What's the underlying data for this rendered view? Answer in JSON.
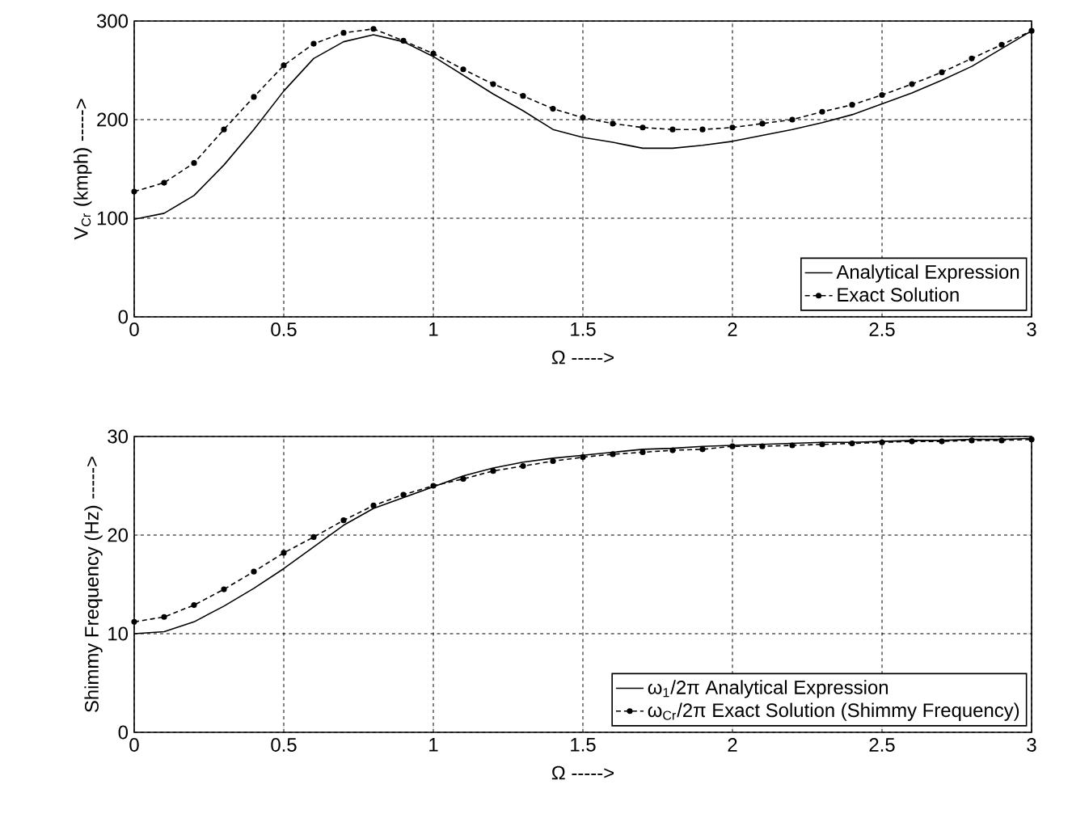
{
  "chart_data": [
    {
      "type": "line",
      "xlabel": "Ω ----->",
      "ylabel": "V$_{Cr}$  (kmph) ----->",
      "x": [
        0,
        0.1,
        0.2,
        0.3,
        0.4,
        0.5,
        0.6,
        0.7,
        0.8,
        0.9,
        1.0,
        1.1,
        1.2,
        1.3,
        1.4,
        1.5,
        1.6,
        1.7,
        1.8,
        1.9,
        2.0,
        2.1,
        2.2,
        2.3,
        2.4,
        2.5,
        2.6,
        2.7,
        2.8,
        2.9,
        3.0
      ],
      "series": [
        {
          "name": "Analytical Expression",
          "color": "#000000",
          "line_style": "solid",
          "marker": "none",
          "values": [
            99,
            105,
            123,
            154,
            190,
            229,
            262,
            279,
            286,
            279,
            264,
            245,
            226,
            209,
            190,
            182,
            177,
            171,
            171,
            174,
            178,
            184,
            190,
            197,
            205,
            216,
            227,
            240,
            254,
            272,
            290
          ]
        },
        {
          "name": "Exact Solution",
          "color": "#000000",
          "line_style": "dashed",
          "marker": "circle",
          "values": [
            127,
            136,
            156,
            190,
            223,
            255,
            277,
            288,
            292,
            280,
            267,
            251,
            236,
            224,
            211,
            202,
            196,
            192,
            190,
            190,
            192,
            196,
            200,
            208,
            215,
            225,
            236,
            248,
            262,
            276,
            290
          ]
        }
      ],
      "xlim": [
        0,
        3
      ],
      "ylim": [
        0,
        300
      ],
      "xticks": [
        0,
        0.5,
        1,
        1.5,
        2,
        2.5,
        3
      ],
      "yticks": [
        0,
        100,
        200,
        300
      ],
      "grid": true,
      "legend": "bottom right"
    },
    {
      "type": "line",
      "xlabel": "Ω ----->",
      "ylabel": "Shimmy Frequency (Hz) ----->",
      "x": [
        0,
        0.1,
        0.2,
        0.3,
        0.4,
        0.5,
        0.6,
        0.7,
        0.8,
        0.9,
        1.0,
        1.1,
        1.2,
        1.3,
        1.4,
        1.5,
        1.6,
        1.7,
        1.8,
        1.9,
        2.0,
        2.1,
        2.2,
        2.3,
        2.4,
        2.5,
        2.6,
        2.7,
        2.8,
        2.9,
        3.0
      ],
      "series": [
        {
          "name": "ω$_{1}$/2π Analytical Expression",
          "color": "#000000",
          "line_style": "solid",
          "marker": "none",
          "values": [
            10.0,
            10.2,
            11.2,
            12.8,
            14.6,
            16.6,
            18.8,
            21.0,
            22.7,
            23.8,
            24.9,
            26.0,
            26.8,
            27.4,
            27.8,
            28.1,
            28.4,
            28.7,
            28.8,
            29.0,
            29.1,
            29.2,
            29.3,
            29.4,
            29.4,
            29.5,
            29.6,
            29.6,
            29.7,
            29.7,
            29.8
          ]
        },
        {
          "name": "ω$_{Cr}$/2π Exact Solution (Shimmy Frequency)",
          "color": "#000000",
          "line_style": "dashed",
          "marker": "circle",
          "values": [
            11.2,
            11.7,
            12.9,
            14.5,
            16.3,
            18.2,
            19.8,
            21.5,
            23.0,
            24.1,
            25.0,
            25.7,
            26.5,
            27.0,
            27.5,
            27.9,
            28.2,
            28.4,
            28.6,
            28.7,
            29.0,
            29.0,
            29.1,
            29.2,
            29.3,
            29.4,
            29.5,
            29.5,
            29.6,
            29.6,
            29.7
          ]
        }
      ],
      "xlim": [
        0,
        3
      ],
      "ylim": [
        0,
        30
      ],
      "xticks": [
        0,
        0.5,
        1,
        1.5,
        2,
        2.5,
        3
      ],
      "yticks": [
        0,
        10,
        20,
        30
      ],
      "grid": true,
      "legend": "bottom right"
    }
  ]
}
